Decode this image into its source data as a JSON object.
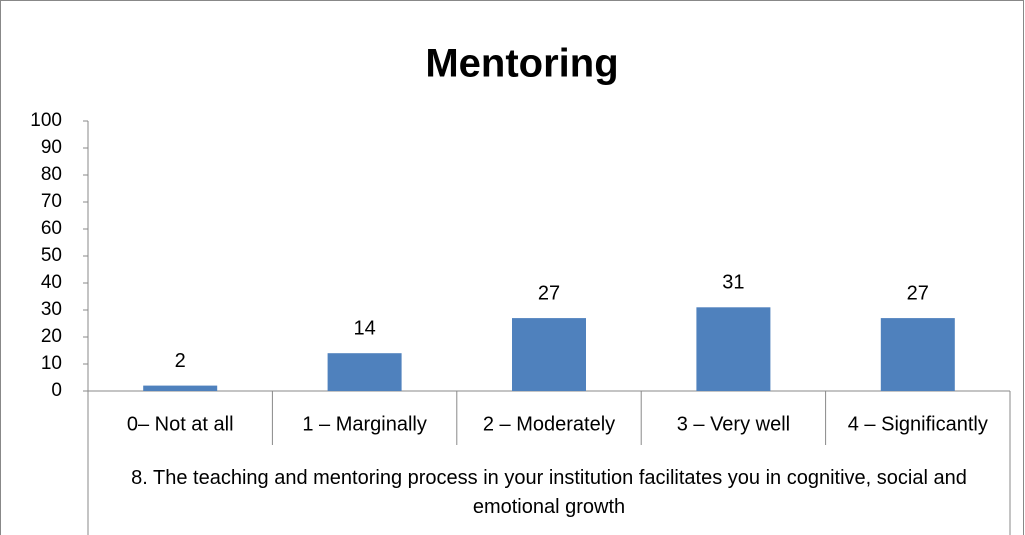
{
  "chart_data": {
    "type": "bar",
    "title": "Mentoring",
    "categories": [
      "0– Not at all",
      "1 – Marginally",
      "2 – Moderately",
      "3 – Very well",
      "4 – Significantly"
    ],
    "values": [
      2,
      14,
      27,
      31,
      27
    ],
    "color": "#4f81bd",
    "group_label": "8. The teaching and mentoring process in your institution facilitates you in cognitive, social and emotional growth",
    "ylim": [
      0,
      100
    ],
    "yticks": [
      0,
      10,
      20,
      30,
      40,
      50,
      60,
      70,
      80,
      90,
      100
    ],
    "grid": false
  }
}
